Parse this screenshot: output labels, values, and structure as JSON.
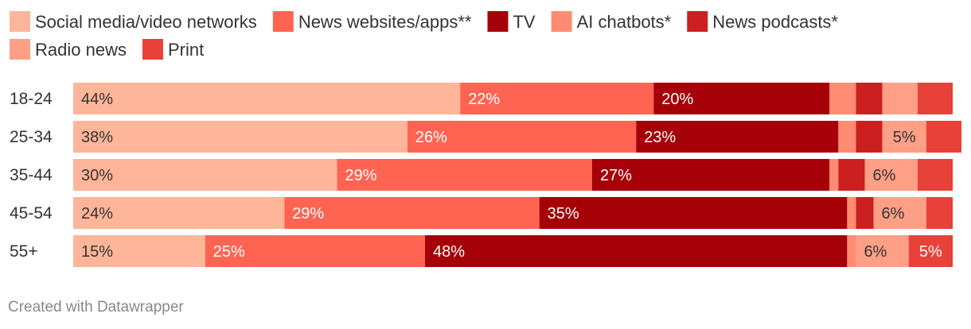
{
  "chart_data": {
    "type": "stacked-bar-horizontal",
    "categories": [
      "18-24",
      "25-34",
      "35-44",
      "45-54",
      "55+"
    ],
    "series": [
      {
        "name": "Social media/video networks",
        "color": "#ffb59a",
        "values": [
          44,
          38,
          30,
          24,
          15
        ],
        "labels": [
          "44%",
          "38%",
          "30%",
          "24%",
          "15%"
        ]
      },
      {
        "name": "News websites/apps**",
        "color": "#ff6452",
        "values": [
          22,
          26,
          29,
          29,
          25
        ],
        "labels": [
          "22%",
          "26%",
          "29%",
          "29%",
          "25%"
        ]
      },
      {
        "name": "TV",
        "color": "#a60008",
        "values": [
          20,
          23,
          27,
          35,
          48
        ],
        "labels": [
          "20%",
          "23%",
          "27%",
          "35%",
          "48%"
        ]
      },
      {
        "name": "AI chatbots*",
        "color": "#ff8c72",
        "values": [
          3,
          2,
          1,
          1,
          1
        ],
        "labels": [
          "",
          "",
          "",
          "",
          ""
        ]
      },
      {
        "name": "News podcasts*",
        "color": "#cc1f20",
        "values": [
          3,
          3,
          3,
          2,
          0
        ],
        "labels": [
          "",
          "",
          "",
          "",
          ""
        ]
      },
      {
        "name": "Radio news",
        "color": "#ff9f86",
        "values": [
          4,
          5,
          6,
          6,
          6
        ],
        "labels": [
          "",
          "5%",
          "6%",
          "6%",
          "6%"
        ]
      },
      {
        "name": "Print",
        "color": "#e8413a",
        "values": [
          4,
          4,
          4,
          3,
          5
        ],
        "labels": [
          "",
          "",
          "",
          "",
          "5%"
        ]
      }
    ],
    "value_unit": "%",
    "legend_placement": "top"
  },
  "footer": {
    "credit": "Created with Datawrapper"
  }
}
